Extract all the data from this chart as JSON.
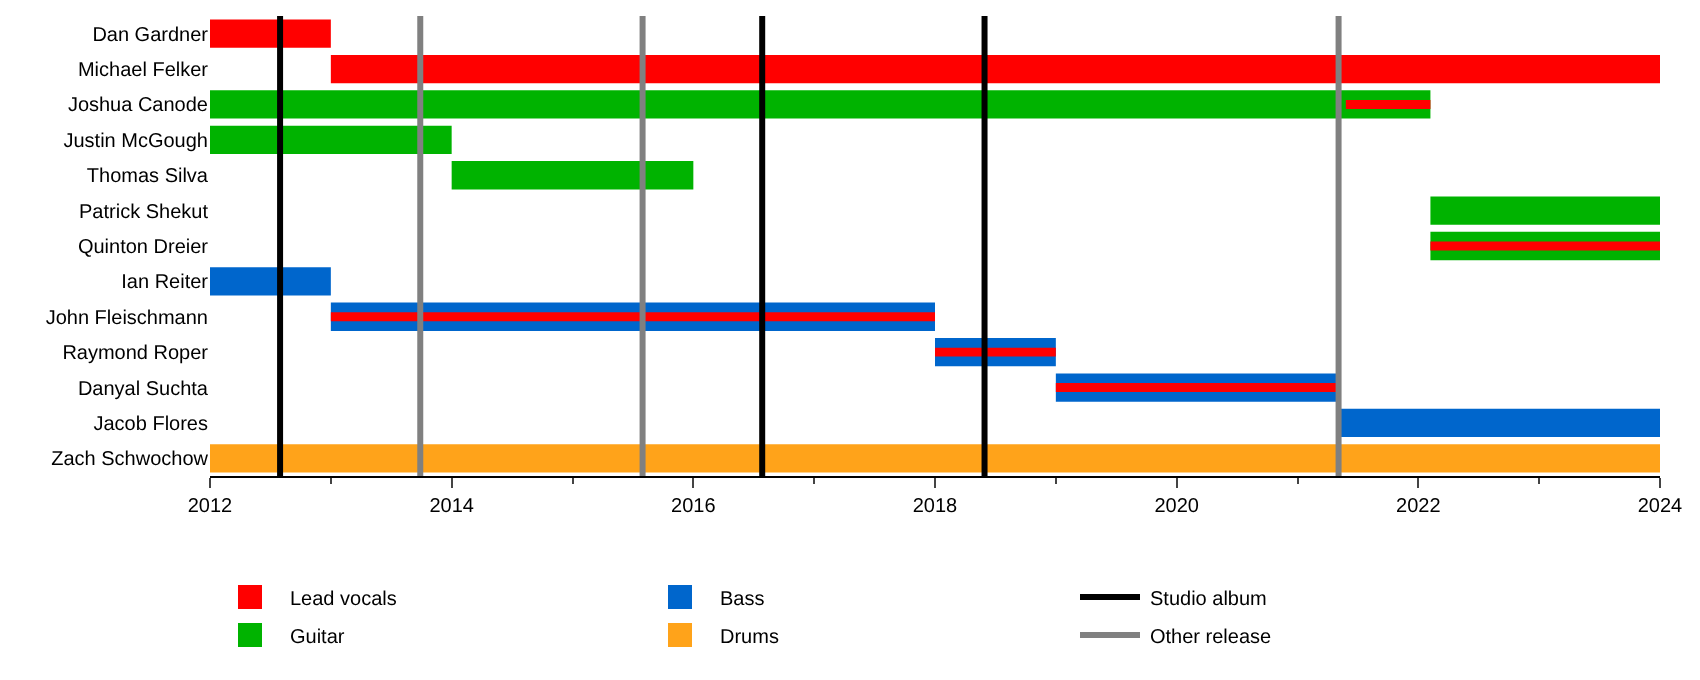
{
  "chart_data": {
    "type": "bar",
    "orientation": "horizontal",
    "categories": [
      "Dan Gardner",
      "Michael Felker",
      "Joshua Canode",
      "Justin McGough",
      "Thomas Silva",
      "Patrick Shekut",
      "Quinton Dreier",
      "Ian Reiter",
      "John Fleischmann",
      "Raymond Roper",
      "Danyal Suchta",
      "Jacob Flores",
      "Zach Schwochow"
    ],
    "series": [
      {
        "name": "Lead vocals",
        "color": "#ff0000",
        "values": [
          1,
          11,
          0.7,
          null,
          null,
          null,
          1.9,
          null,
          5,
          1,
          2.35,
          null,
          null
        ],
        "base": [
          2012,
          2013,
          2021.4,
          null,
          null,
          null,
          2022.1,
          null,
          2013,
          2018,
          2019,
          null,
          null
        ]
      },
      {
        "name": "Guitar",
        "color": "#00b300",
        "values": [
          null,
          null,
          10.1,
          2,
          2,
          1.9,
          1.9,
          null,
          null,
          null,
          null,
          null,
          null
        ],
        "base": [
          null,
          null,
          2012,
          2012,
          2014,
          2022.1,
          2022.1,
          null,
          null,
          null,
          null,
          null,
          null
        ]
      },
      {
        "name": "Bass",
        "color": "#0066cc",
        "values": [
          null,
          null,
          null,
          null,
          null,
          null,
          null,
          1,
          5,
          1,
          2.35,
          2.65,
          null
        ],
        "base": [
          null,
          null,
          null,
          null,
          null,
          null,
          null,
          2012,
          2013,
          2018,
          2019,
          2021.35,
          null
        ]
      },
      {
        "name": "Drums",
        "color": "#ffa31a",
        "values": [
          null,
          null,
          null,
          null,
          null,
          null,
          null,
          null,
          null,
          null,
          null,
          null,
          12
        ],
        "base": [
          null,
          null,
          null,
          null,
          null,
          null,
          null,
          null,
          null,
          null,
          null,
          null,
          2012
        ]
      }
    ],
    "xlim": [
      2012,
      2024
    ],
    "xticks": [
      2012,
      2014,
      2016,
      2018,
      2020,
      2022,
      2024
    ],
    "ref_lines": [
      {
        "axis": "x",
        "value": 2012.58,
        "label": "Studio album",
        "color": "#000000"
      },
      {
        "axis": "x",
        "value": 2016.57,
        "color": "#000000"
      },
      {
        "axis": "x",
        "value": 2018.41,
        "color": "#000000"
      },
      {
        "axis": "x",
        "value": 2013.74,
        "label": "Other release",
        "color": "#808080"
      },
      {
        "axis": "x",
        "value": 2015.58,
        "color": "#808080"
      },
      {
        "axis": "x",
        "value": 2021.34,
        "color": "#808080"
      }
    ],
    "legend": "bottom",
    "grid": false
  }
}
